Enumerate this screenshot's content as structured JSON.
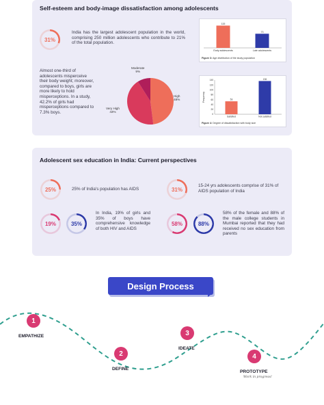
{
  "section1": {
    "title": "Self-esteem and body-image dissatisfaction among adolescents",
    "stat_ring": {
      "value": "31%",
      "fill": 0.31,
      "color": "#ee6e5a"
    },
    "intro_text": "India has the largest adolescent population in the world, comprising 250 million adolescents who contribute to 21% of the total population.",
    "misperception_text": "Almost one-third of adolescents misperceive their body weight; moreover, compared to boys, girls are more likely to hold misperceptions. In a study, 42.2% of girls had misperceptions compared to 7.3% boys."
  },
  "charts": [
    {
      "type": "bar",
      "categories": [
        "Early adolescents",
        "Late adolescents"
      ],
      "values": [
        115,
        73
      ],
      "value_labels": [
        "115",
        "73"
      ],
      "colors": [
        "#ee6e5a",
        "#2e3ba8"
      ],
      "ylim": [
        0,
        120
      ],
      "caption_bold": "Figure 3:",
      "caption_text": "Age distribution of the study population"
    },
    {
      "type": "pie",
      "slices": [
        {
          "label": "High",
          "percent_label": "48%",
          "value": 48,
          "color": "#ee6e5a"
        },
        {
          "label": "Very High",
          "percent_label": "43%",
          "value": 43,
          "color": "#d93a5c"
        },
        {
          "label": "Moderate",
          "percent_label": "9%",
          "value": 9,
          "color": "#b01e5a"
        }
      ]
    },
    {
      "type": "bar",
      "categories": [
        "Satisfied",
        "Not satisfied"
      ],
      "values": [
        53,
        136
      ],
      "value_labels": [
        "53",
        "136"
      ],
      "colors": [
        "#ee6e5a",
        "#2e3ba8"
      ],
      "ylim": [
        0,
        140
      ],
      "yticks": [
        "0",
        "20",
        "40",
        "60",
        "80",
        "100",
        "120",
        "140"
      ],
      "ylabel": "Frequency",
      "caption_bold": "Figure 4:",
      "caption_text": "Degree of dissatisfaction with body size"
    }
  ],
  "section2": {
    "title": "Adolescent sex education in India: Current perspectives",
    "stats": [
      {
        "rings": [
          {
            "value": "25%",
            "fill": 0.25,
            "color": "#ee6e5a"
          }
        ],
        "text": "25% of India's population has AIDS"
      },
      {
        "rings": [
          {
            "value": "31%",
            "fill": 0.31,
            "color": "#ee6e5a"
          }
        ],
        "text": "15-24 yrs adolescents comprise of 31% of AIDS population of India"
      },
      {
        "rings": [
          {
            "value": "19%",
            "fill": 0.19,
            "color": "#d93a72"
          },
          {
            "value": "35%",
            "fill": 0.35,
            "color": "#2e3ba8"
          }
        ],
        "text": "In India, 19% of girls and 35% of boys have comprehensive knowledge of both HIV and AIDS"
      },
      {
        "rings": [
          {
            "value": "58%",
            "fill": 0.58,
            "color": "#d93a72"
          },
          {
            "value": "88%",
            "fill": 0.88,
            "color": "#2e3ba8"
          }
        ],
        "text": "58% of the female and 88% of the male college students in Mumbai reported that they had received no sex education from parents"
      }
    ]
  },
  "design_process": {
    "title": "Design Process",
    "steps": [
      {
        "number": "1",
        "label": "EMPATHIZE"
      },
      {
        "number": "2",
        "label": "DEFINE"
      },
      {
        "number": "3",
        "label": "IDEATE"
      },
      {
        "number": "4",
        "label": "PROTOTYPE",
        "sub": "Work in progress!"
      }
    ]
  }
}
